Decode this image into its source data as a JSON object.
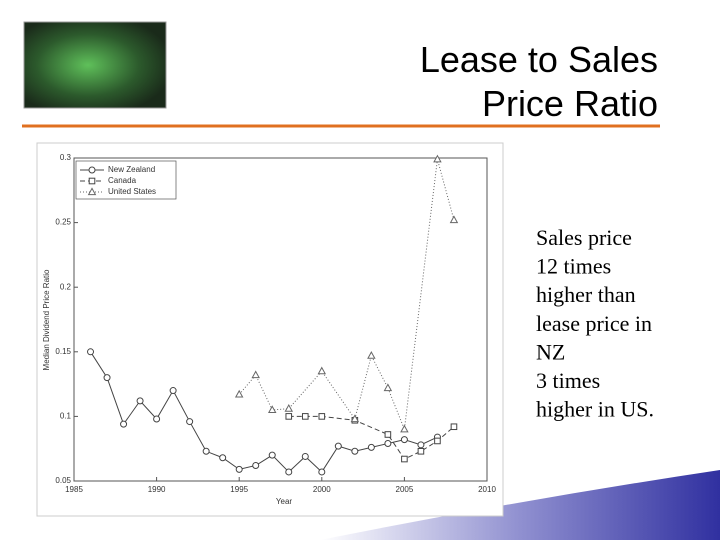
{
  "slide": {
    "title_lines": [
      "Lease to Sales",
      "Price Ratio"
    ],
    "body_lines": [
      "Sales price",
      "12 times",
      "higher than",
      "lease price in",
      "NZ",
      "3 times",
      "higher in US."
    ]
  },
  "chart_data": {
    "type": "line",
    "x_label": "Year",
    "y_label": "Median Dividend Price Ratio",
    "xlim": [
      1985,
      2010
    ],
    "xticks": [
      1985,
      1990,
      1995,
      2000,
      2005,
      2010
    ],
    "ylim": [
      0.05,
      0.3
    ],
    "yticks": [
      0.05,
      0.1,
      0.15,
      0.2,
      0.25,
      0.3
    ],
    "legend": "upper-left",
    "series": [
      {
        "name": "New Zealand",
        "color": "#444444",
        "dash": "solid",
        "marker": "circle",
        "x": [
          1986,
          1987,
          1988,
          1989,
          1990,
          1991,
          1992,
          1993,
          1994,
          1995,
          1996,
          1997,
          1998,
          1999,
          2000,
          2001,
          2002,
          2003,
          2004,
          2005,
          2006,
          2007
        ],
        "values": [
          0.15,
          0.13,
          0.094,
          0.112,
          0.098,
          0.12,
          0.096,
          0.073,
          0.068,
          0.059,
          0.062,
          0.07,
          0.057,
          0.069,
          0.057,
          0.077,
          0.073,
          0.076,
          0.079,
          0.082,
          0.078,
          0.084
        ]
      },
      {
        "name": "Canada",
        "color": "#444444",
        "dash": "dashed",
        "marker": "square",
        "x": [
          1998,
          1999,
          2000,
          2002,
          2004,
          2005,
          2006,
          2007,
          2008
        ],
        "values": [
          0.1,
          0.1,
          0.1,
          0.097,
          0.086,
          0.067,
          0.073,
          0.081,
          0.092
        ]
      },
      {
        "name": "United States",
        "color": "#666666",
        "dash": "dotted",
        "marker": "triangle",
        "x": [
          1995,
          1996,
          1997,
          1998,
          2000,
          2002,
          2003,
          2004,
          2005,
          2007,
          2008
        ],
        "values": [
          0.117,
          0.132,
          0.105,
          0.106,
          0.135,
          0.098,
          0.147,
          0.122,
          0.09,
          0.299,
          0.252
        ]
      }
    ]
  }
}
